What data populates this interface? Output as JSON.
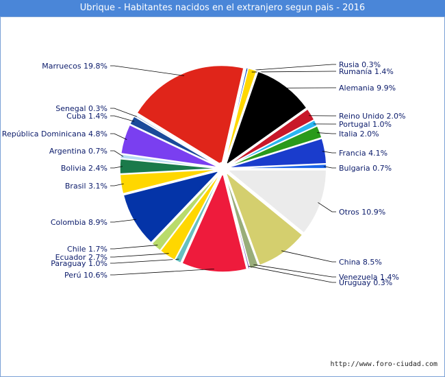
{
  "title": "Ubrique - Habitantes nacidos en el extranjero segun pais - 2016",
  "source": "http://www.foro-ciudad.com",
  "chart_data": {
    "type": "pie",
    "title": "Ubrique - Habitantes nacidos en el extranjero segun pais - 2016",
    "unit": "%",
    "slices": [
      {
        "label": "Otros 10.9%",
        "value": 10.9,
        "color": "#ebebeb"
      },
      {
        "label": "China 8.5%",
        "value": 8.5,
        "color": "#d4cf6e"
      },
      {
        "label": "Venezuela 1.4%",
        "value": 1.4,
        "color": "#99ad7a"
      },
      {
        "label": "Uruguay 0.3%",
        "value": 0.3,
        "color": "#8a6cc2"
      },
      {
        "label": "Perú 10.6%",
        "value": 10.6,
        "color": "#ee1b3c"
      },
      {
        "label": "Paraguay 1.0%",
        "value": 1.0,
        "color": "#66c0c0"
      },
      {
        "label": "Ecuador 2.7%",
        "value": 2.7,
        "color": "#ffd700"
      },
      {
        "label": "Chile 1.7%",
        "value": 1.7,
        "color": "#b9db6b"
      },
      {
        "label": "Colombia 8.9%",
        "value": 8.9,
        "color": "#0434a8"
      },
      {
        "label": "Brasil 3.1%",
        "value": 3.1,
        "color": "#ffd700"
      },
      {
        "label": "Bolivia 2.4%",
        "value": 2.4,
        "color": "#1a7a4a"
      },
      {
        "label": "Argentina 0.7%",
        "value": 0.7,
        "color": "#b8dcf4"
      },
      {
        "label": "República Dominicana 4.8%",
        "value": 4.8,
        "color": "#7a3ff0"
      },
      {
        "label": "Cuba 1.4%",
        "value": 1.4,
        "color": "#1a4a9a"
      },
      {
        "label": "Senegal 0.3%",
        "value": 0.3,
        "color": "#a8c0e0"
      },
      {
        "label": "Marruecos 19.8%",
        "value": 19.8,
        "color": "#e0251a"
      },
      {
        "label": "Rusia 0.3%",
        "value": 0.3,
        "color": "#0a48c8"
      },
      {
        "label": "Rumanía 1.4%",
        "value": 1.4,
        "color": "#ffd700"
      },
      {
        "label": "Alemania 9.9%",
        "value": 9.9,
        "color": "#000000"
      },
      {
        "label": "Reino Unido 2.0%",
        "value": 2.0,
        "color": "#c8182a"
      },
      {
        "label": "Portugal 1.0%",
        "value": 1.0,
        "color": "#2ab6f0"
      },
      {
        "label": "Italia 2.0%",
        "value": 2.0,
        "color": "#2a9a1a"
      },
      {
        "label": "Francia 4.1%",
        "value": 4.1,
        "color": "#1a3ccc"
      },
      {
        "label": "Bulgaria 0.7%",
        "value": 0.7,
        "color": "#1a64e8"
      }
    ]
  }
}
